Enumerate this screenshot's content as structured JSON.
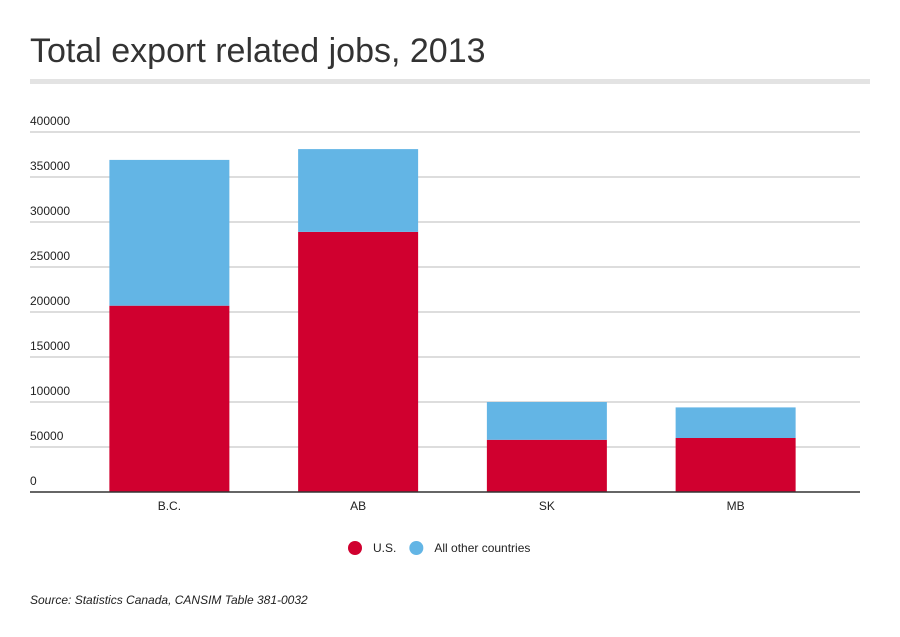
{
  "chart_data": {
    "type": "stacked-bar",
    "title": "Total export related jobs, 2013",
    "categories": [
      "B.C.",
      "AB",
      "SK",
      "MB"
    ],
    "series": [
      {
        "name": "U.S.",
        "color": "#d0002f",
        "values": [
          207000,
          289000,
          58000,
          60000
        ]
      },
      {
        "name": "All other countries",
        "color": "#63b5e5",
        "values": [
          162000,
          92000,
          42000,
          34000
        ]
      }
    ],
    "ylim": [
      0,
      400000
    ],
    "yticks": [
      0,
      50000,
      100000,
      150000,
      200000,
      250000,
      300000,
      350000,
      400000
    ],
    "grid": true,
    "legend": "bottom",
    "source": "Source: Statistics Canada, CANSIM Table 381-0032"
  }
}
